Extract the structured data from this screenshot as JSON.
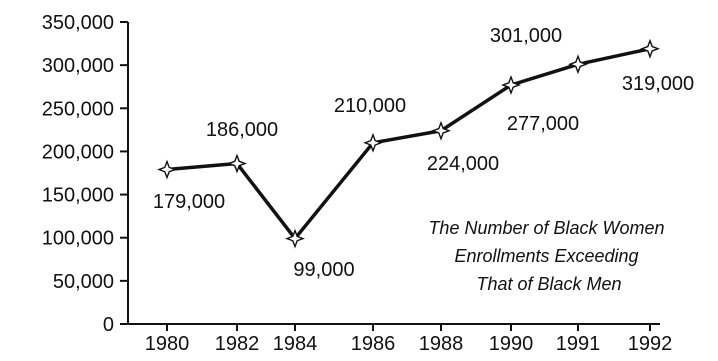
{
  "chart_data": {
    "type": "line",
    "categories": [
      "1980",
      "1982",
      "1984",
      "1986",
      "1988",
      "1990",
      "1991",
      "1992"
    ],
    "series": [
      {
        "values": [
          179000,
          186000,
          99000,
          210000,
          224000,
          277000,
          301000,
          319000
        ]
      }
    ],
    "data_labels": [
      "179,000",
      "186,000",
      "99,000",
      "210,000",
      "224,000",
      "277,000",
      "301,000",
      "319,000"
    ],
    "y_ticks": [
      0,
      50000,
      100000,
      150000,
      200000,
      250000,
      300000,
      350000
    ],
    "y_tick_labels": [
      "0",
      "50,000",
      "100,000",
      "150,000",
      "200,000",
      "250,000",
      "300,000",
      "350,000"
    ],
    "ylim": [
      0,
      350000
    ],
    "title": "",
    "xlabel": "",
    "ylabel": "",
    "annotation": [
      "The Number of Black Women",
      "Enrollments Exceeding",
      "That of Black Men"
    ],
    "grid": false,
    "line_color": "#111111",
    "marker": "four-point-star"
  }
}
